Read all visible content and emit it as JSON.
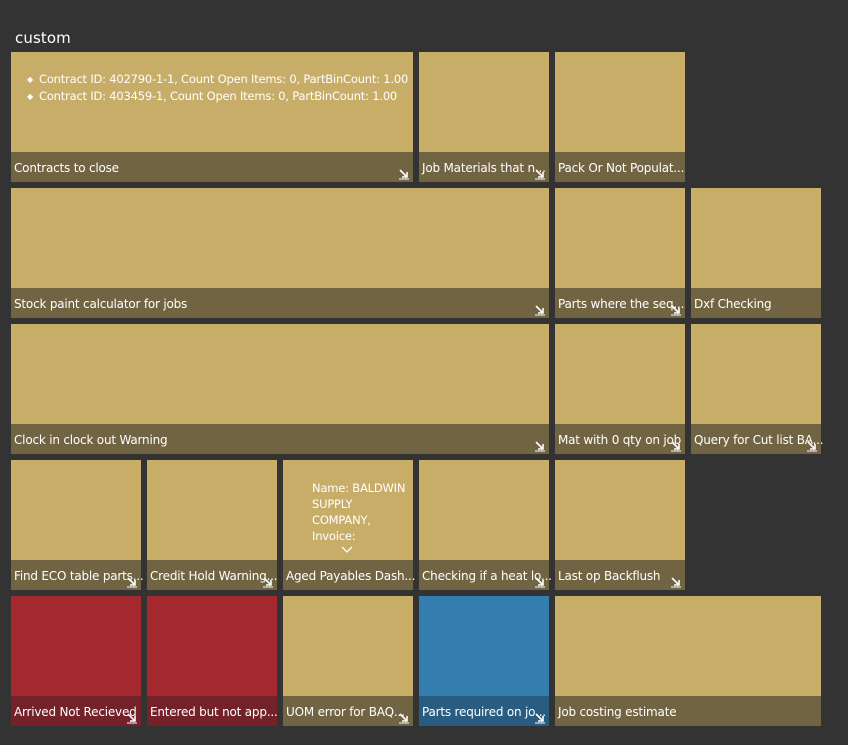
{
  "group": {
    "title": "custom"
  },
  "tiles": [
    {
      "label": "Contracts to close",
      "color": "tan",
      "items": [
        "Contract ID: 402790-1-1, Count Open Items: 0, PartBinCount: 1.00",
        "Contract ID: 403459-1, Count Open Items: 0, PartBinCount: 1.00"
      ]
    },
    {
      "label": "Job Materials that n...",
      "color": "tan"
    },
    {
      "label": "Pack Or Not Populat...",
      "color": "tan"
    },
    {
      "label": "Stock paint calculator for jobs",
      "color": "tan"
    },
    {
      "label": "Parts where the seq...",
      "color": "tan"
    },
    {
      "label": "Dxf Checking",
      "color": "tan"
    },
    {
      "label": "Clock in clock out Warning",
      "color": "tan"
    },
    {
      "label": "Mat with 0 qty on job",
      "color": "tan"
    },
    {
      "label": "Query for Cut list BA...",
      "color": "tan"
    },
    {
      "label": "Find ECO table parts...",
      "color": "tan"
    },
    {
      "label": "Credit Hold Warning...",
      "color": "tan"
    },
    {
      "label": "Aged Payables Dash...",
      "color": "tan",
      "content": "Name: BALDWIN SUPPLY COMPANY, Invoice:"
    },
    {
      "label": "Checking if a heat lo...",
      "color": "tan"
    },
    {
      "label": "Last op Backflush",
      "color": "tan"
    },
    {
      "label": "Arrived Not Recieved",
      "color": "red"
    },
    {
      "label": "Entered but not app...",
      "color": "red"
    },
    {
      "label": "UOM error for BAQ...",
      "color": "tan"
    },
    {
      "label": "Parts required on jo...",
      "color": "blue"
    },
    {
      "label": "Job costing estimate",
      "color": "tan"
    }
  ],
  "colors": {
    "background": "#333333",
    "tan": "#c8ad69",
    "tan_bar": "#716443",
    "red": "#a52a2f",
    "blue": "#337daf"
  },
  "icons": {
    "corner": "expand-corner-icon",
    "bullet": "diamond-bullet-icon",
    "chevron": "chevron-down-icon"
  }
}
